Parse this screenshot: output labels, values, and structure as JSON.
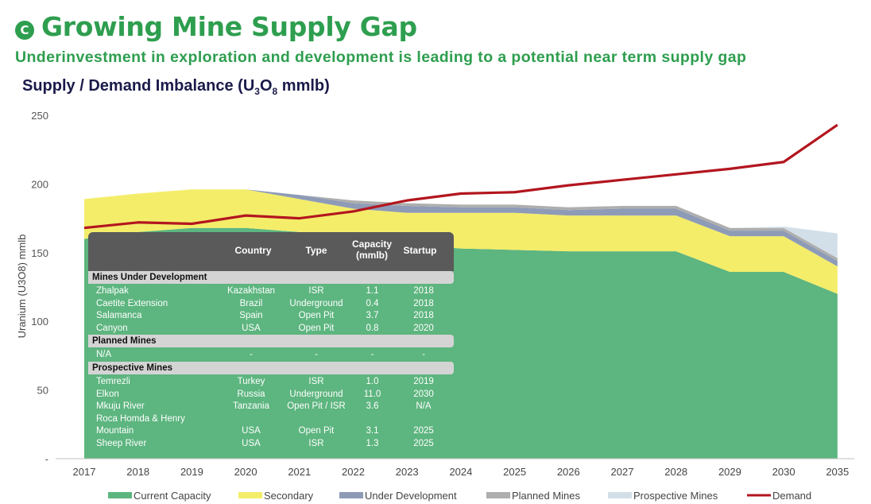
{
  "header": {
    "badge": "C",
    "title": "Growing Mine Supply Gap",
    "subtitle": "Underinvestment in exploration and development is leading to a potential near term supply gap",
    "chart_title_pre": "Supply / Demand Imbalance (U",
    "chart_title_sub1": "3",
    "chart_title_mid": "O",
    "chart_title_sub2": "8",
    "chart_title_post": " mmlb)"
  },
  "colors": {
    "current_capacity": "#5db57f",
    "secondary": "#f4ed6a",
    "under_development": "#8e9bb7",
    "planned_mines": "#aeaeae",
    "prospective_mines": "#d3dfe8",
    "demand": "#b3161f",
    "title_green": "#2e9e4f"
  },
  "chart_data": {
    "type": "area",
    "ylabel": "Uranium (U3O8) mmlb",
    "ylim": [
      0,
      250
    ],
    "yticks": [
      "250",
      "200",
      "150",
      "100",
      "50",
      "-"
    ],
    "categories": [
      "2017",
      "2018",
      "2019",
      "2020",
      "2021",
      "2022",
      "2023",
      "2024",
      "2025",
      "2026",
      "2027",
      "2028",
      "2029",
      "2030",
      "2035"
    ],
    "series": [
      {
        "name": "Current Capacity",
        "kind": "area",
        "values": [
          160,
          165,
          168,
          168,
          165,
          160,
          156,
          153,
          152,
          151,
          151,
          151,
          136,
          136,
          120
        ]
      },
      {
        "name": "Secondary",
        "kind": "area",
        "values": [
          29,
          28,
          28,
          28,
          24,
          22,
          23,
          26,
          27,
          26,
          26,
          26,
          26,
          26,
          20
        ]
      },
      {
        "name": "Under Development",
        "kind": "area",
        "values": [
          0,
          0,
          0,
          0,
          3,
          4,
          5,
          4,
          4,
          4,
          5,
          5,
          4,
          4,
          4
        ]
      },
      {
        "name": "Planned Mines",
        "kind": "area",
        "values": [
          0,
          0,
          0,
          0,
          0,
          2,
          2,
          2,
          2,
          2,
          2,
          2,
          2,
          2,
          2
        ]
      },
      {
        "name": "Prospective Mines",
        "kind": "area",
        "values": [
          0,
          0,
          0,
          0,
          0,
          0,
          0,
          0,
          0,
          0,
          0,
          0,
          0,
          1,
          18
        ]
      },
      {
        "name": "Demand",
        "kind": "line",
        "values": [
          168,
          172,
          171,
          177,
          175,
          180,
          188,
          193,
          194,
          199,
          203,
          207,
          211,
          216,
          243
        ]
      }
    ],
    "legend_position": "bottom"
  },
  "table": {
    "headers": {
      "country": "Country",
      "type": "Type",
      "capacity_1": "Capacity",
      "capacity_2": "(mmlb)",
      "startup": "Startup"
    },
    "sections": [
      {
        "title": "Mines Under Development",
        "rows": [
          {
            "name": "Zhalpak",
            "country": "Kazakhstan",
            "type": "ISR",
            "capacity": "1.1",
            "startup": "2018"
          },
          {
            "name": "Caetite Extension",
            "country": "Brazil",
            "type": "Underground",
            "capacity": "0.4",
            "startup": "2018"
          },
          {
            "name": "Salamanca",
            "country": "Spain",
            "type": "Open Pit",
            "capacity": "3.7",
            "startup": "2018"
          },
          {
            "name": "Canyon",
            "country": "USA",
            "type": "Open Pit",
            "capacity": "0.8",
            "startup": "2020"
          }
        ]
      },
      {
        "title": "Planned Mines",
        "rows": [
          {
            "name": "N/A",
            "country": "-",
            "type": "-",
            "capacity": "-",
            "startup": "-"
          }
        ]
      },
      {
        "title": "Prospective Mines",
        "rows": [
          {
            "name": "Temrezli",
            "country": "Turkey",
            "type": "ISR",
            "capacity": "1.0",
            "startup": "2019"
          },
          {
            "name": "Elkon",
            "country": "Russia",
            "type": "Underground",
            "capacity": "11.0",
            "startup": "2030"
          },
          {
            "name": "Mkuju River",
            "country": "Tanzania",
            "type": "Open Pit / ISR",
            "capacity": "3.6",
            "startup": "N/A"
          },
          {
            "name": "Roca Homda & Henry",
            "country": "",
            "type": "",
            "capacity": "",
            "startup": ""
          },
          {
            "name": "Mountain",
            "country": "USA",
            "type": "Open Pit",
            "capacity": "3.1",
            "startup": "2025"
          },
          {
            "name": "Sheep River",
            "country": "USA",
            "type": "ISR",
            "capacity": "1.3",
            "startup": "2025"
          }
        ]
      }
    ]
  }
}
